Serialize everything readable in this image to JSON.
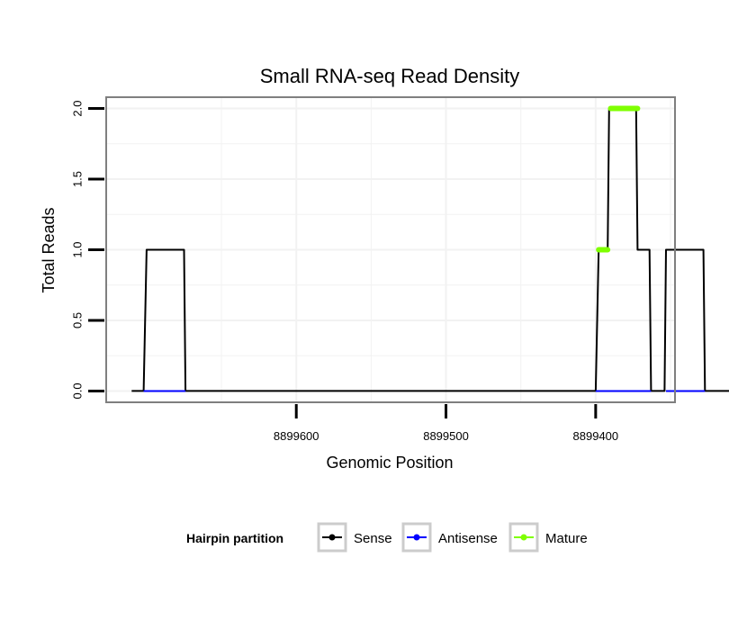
{
  "chart_data": {
    "type": "line",
    "title": "Small RNA-seq Read Density",
    "xlabel": "Genomic Position",
    "ylabel": "Total Reads",
    "x_reversed": true,
    "xlim": [
      8899727,
      8899347
    ],
    "ylim": [
      -0.08,
      2.08
    ],
    "x_ticks": [
      8899600,
      8899500,
      8899400
    ],
    "x_tick_labels": [
      "8899600",
      "8899500",
      "8899400"
    ],
    "y_ticks": [
      0.0,
      0.5,
      1.0,
      1.5,
      2.0
    ],
    "y_tick_labels": [
      "0.0",
      "0.5",
      "1.0",
      "1.5",
      "2.0"
    ],
    "grid": true,
    "legend": {
      "title": "Hairpin partition",
      "position": "bottom",
      "entries": [
        {
          "name": "Sense",
          "color": "#000000"
        },
        {
          "name": "Antisense",
          "color": "#0000ff"
        },
        {
          "name": "Mature",
          "color": "#7fff00"
        }
      ]
    },
    "series": [
      {
        "name": "Sense",
        "color": "#000000",
        "x": [
          8899710,
          8899702,
          8899700,
          8899675,
          8899674,
          8899400,
          8899398,
          8899392,
          8899391,
          8899373,
          8899372,
          8899364,
          8899363,
          8899354,
          8899353,
          8899328,
          8899327,
          8899305
        ],
        "y": [
          0,
          0,
          1,
          1,
          0,
          0,
          1,
          1,
          2,
          2,
          1,
          1,
          0,
          0,
          1,
          1,
          0,
          0
        ]
      },
      {
        "name": "Antisense",
        "color": "#0000ff",
        "x": [
          8899702,
          8899674,
          8899400,
          8899363,
          8899353,
          8899327
        ],
        "y": [
          0,
          0,
          0,
          0,
          0,
          0
        ],
        "segments": [
          [
            0,
            1
          ],
          [
            2,
            3
          ],
          [
            4,
            5
          ]
        ]
      },
      {
        "name": "Mature",
        "color": "#7fff00",
        "x": [
          8899398,
          8899392,
          8899390,
          8899372
        ],
        "y": [
          1,
          1,
          2,
          2
        ],
        "segments": [
          [
            0,
            1
          ],
          [
            2,
            3
          ]
        ]
      }
    ]
  }
}
